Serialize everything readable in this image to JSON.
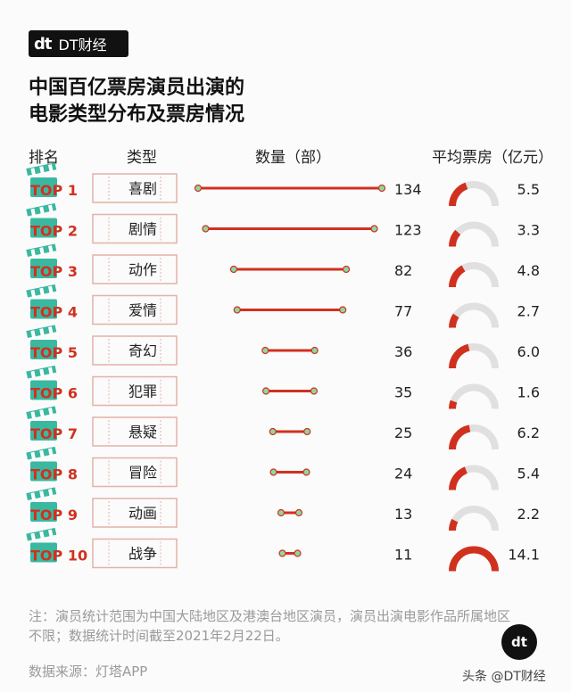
{
  "brand": {
    "mark": "dt",
    "name": "DT财经"
  },
  "title_lines": [
    "中国百亿票房演员出演的",
    "电影类型分布及票房情况"
  ],
  "headers": {
    "rank": "排名",
    "type": "类型",
    "count": "数量（部）",
    "avg": "平均票房（亿元）"
  },
  "colors": {
    "accent": "#d0311f",
    "teal": "#3ab8a0",
    "gauge_bg": "#e0e0e0",
    "dot": "#8fd6a0"
  },
  "chart_data": {
    "type": "table",
    "title": "中国百亿票房演员出演的电影类型分布及票房情况",
    "rows": [
      {
        "rank": "TOP 1",
        "genre": "喜剧",
        "count": 134,
        "avg_box_office": 5.5
      },
      {
        "rank": "TOP 2",
        "genre": "剧情",
        "count": 123,
        "avg_box_office": 3.3
      },
      {
        "rank": "TOP 3",
        "genre": "动作",
        "count": 82,
        "avg_box_office": 4.8
      },
      {
        "rank": "TOP 4",
        "genre": "爱情",
        "count": 77,
        "avg_box_office": 2.7
      },
      {
        "rank": "TOP 5",
        "genre": "奇幻",
        "count": 36,
        "avg_box_office": 6.0
      },
      {
        "rank": "TOP 6",
        "genre": "犯罪",
        "count": 35,
        "avg_box_office": 1.6
      },
      {
        "rank": "TOP 7",
        "genre": "悬疑",
        "count": 25,
        "avg_box_office": 6.2
      },
      {
        "rank": "TOP 8",
        "genre": "冒险",
        "count": 24,
        "avg_box_office": 5.4
      },
      {
        "rank": "TOP 9",
        "genre": "动画",
        "count": 13,
        "avg_box_office": 2.2
      },
      {
        "rank": "TOP 10",
        "genre": "战争",
        "count": 11,
        "avg_box_office": 14.1
      }
    ],
    "count_max": 134,
    "avg_max": 14.1
  },
  "note": "注：演员统计范围为中国大陆地区及港澳台地区演员，演员出演电影作品所属地区不限；数据统计时间截至2021年2月22日。",
  "source": "数据来源：灯塔APP",
  "credit": "头条 @DT财经"
}
